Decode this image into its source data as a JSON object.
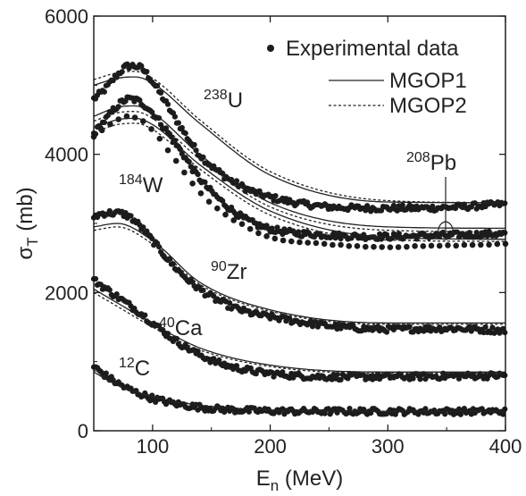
{
  "chart_data": {
    "type": "scatter",
    "xlabel": {
      "main": "E",
      "sub": "n",
      "unit": " (MeV)"
    },
    "ylabel": {
      "main": "σ",
      "sub": "T",
      "unit": " (mb)"
    },
    "xlim": [
      50,
      400
    ],
    "ylim": [
      0,
      6000
    ],
    "xticks": [
      100,
      200,
      300,
      400
    ],
    "yticks": [
      0,
      2000,
      4000,
      6000
    ],
    "legend": {
      "placement": "top-right",
      "entries": [
        {
          "label": "Experimental data",
          "style": "dots"
        },
        {
          "label": "MGOP1",
          "style": "solid"
        },
        {
          "label": "MGOP2",
          "style": "dashed"
        }
      ]
    },
    "nuclei": [
      {
        "mass": "238",
        "symbol": "U",
        "experimental": {
          "x": [
            50,
            60,
            70,
            80,
            90,
            100,
            120,
            140,
            160,
            180,
            200,
            250,
            300,
            350,
            400
          ],
          "y": [
            4800,
            4950,
            5150,
            5280,
            5250,
            5050,
            4500,
            4000,
            3700,
            3500,
            3380,
            3240,
            3220,
            3230,
            3280
          ]
        },
        "mgop1": {
          "x": [
            50,
            70,
            85,
            100,
            140,
            200,
            300,
            400
          ],
          "y": [
            5000,
            5100,
            5120,
            5030,
            4450,
            3700,
            3310,
            3300
          ]
        },
        "mgop2": {
          "x": [
            50,
            70,
            85,
            100,
            140,
            200,
            300,
            400
          ],
          "y": [
            5080,
            5180,
            5200,
            5100,
            4500,
            3750,
            3330,
            3300
          ]
        }
      },
      {
        "mass": "208",
        "symbol": "Pb",
        "experimental": {
          "x": [
            50,
            60,
            70,
            80,
            90,
            100,
            120,
            140,
            160,
            180,
            200,
            250,
            300,
            350,
            400
          ],
          "y": [
            4300,
            4500,
            4700,
            4800,
            4750,
            4600,
            4150,
            3650,
            3300,
            3050,
            2920,
            2830,
            2810,
            2830,
            2850
          ]
        },
        "mgop1": {
          "x": [
            50,
            70,
            85,
            100,
            140,
            200,
            300,
            400
          ],
          "y": [
            4550,
            4680,
            4700,
            4600,
            4000,
            3300,
            2950,
            2930
          ]
        },
        "mgop2": {
          "x": [
            50,
            70,
            85,
            100,
            140,
            200,
            300,
            400
          ],
          "y": [
            4480,
            4600,
            4620,
            4520,
            3930,
            3240,
            2900,
            2880
          ]
        }
      },
      {
        "mass": "184",
        "symbol": "W",
        "experimental": {
          "x": [
            50,
            60,
            70,
            80,
            90,
            100,
            120,
            140,
            160,
            180,
            200,
            250,
            300,
            350,
            400
          ],
          "y": [
            4250,
            4380,
            4500,
            4550,
            4500,
            4350,
            3900,
            3450,
            3150,
            2950,
            2800,
            2700,
            2660,
            2680,
            2700
          ]
        },
        "mgop1": {
          "x": [
            50,
            70,
            85,
            100,
            140,
            200,
            300,
            400
          ],
          "y": [
            4380,
            4500,
            4520,
            4430,
            3850,
            3180,
            2800,
            2770
          ]
        },
        "mgop2": {
          "x": [
            50,
            70,
            85,
            100,
            140,
            200,
            300,
            400
          ],
          "y": [
            4320,
            4430,
            4450,
            4360,
            3790,
            3120,
            2760,
            2740
          ]
        }
      },
      {
        "mass": "90",
        "symbol": "Zr",
        "experimental": {
          "x": [
            50,
            60,
            70,
            80,
            90,
            100,
            120,
            140,
            160,
            180,
            200,
            250,
            300,
            350,
            400
          ],
          "y": [
            3100,
            3150,
            3150,
            3100,
            2950,
            2750,
            2350,
            2050,
            1850,
            1720,
            1650,
            1520,
            1470,
            1480,
            1450
          ]
        },
        "mgop1": {
          "x": [
            50,
            70,
            100,
            140,
            200,
            300,
            400
          ],
          "y": [
            2950,
            3000,
            2750,
            2150,
            1750,
            1560,
            1560
          ]
        },
        "mgop2": {
          "x": [
            50,
            70,
            100,
            140,
            200,
            300,
            400
          ],
          "y": [
            2900,
            2950,
            2700,
            2120,
            1730,
            1540,
            1540
          ]
        }
      },
      {
        "mass": "40",
        "symbol": "Ca",
        "experimental": {
          "x": [
            50,
            60,
            70,
            80,
            90,
            100,
            120,
            140,
            160,
            180,
            200,
            250,
            300,
            350,
            400
          ],
          "y": [
            2180,
            2060,
            1940,
            1820,
            1700,
            1560,
            1300,
            1100,
            960,
            880,
            830,
            780,
            780,
            790,
            800
          ]
        },
        "mgop1": {
          "x": [
            50,
            70,
            100,
            140,
            200,
            300,
            400
          ],
          "y": [
            2050,
            1850,
            1550,
            1200,
            950,
            850,
            850
          ]
        },
        "mgop2": {
          "x": [
            50,
            70,
            100,
            140,
            200,
            300,
            400
          ],
          "y": [
            2000,
            1800,
            1500,
            1170,
            930,
            830,
            830
          ]
        }
      },
      {
        "mass": "12",
        "symbol": "C",
        "experimental": {
          "x": [
            50,
            60,
            70,
            80,
            90,
            100,
            120,
            140,
            160,
            180,
            200,
            250,
            300,
            350,
            400
          ],
          "y": [
            930,
            800,
            690,
            600,
            530,
            470,
            390,
            340,
            310,
            295,
            285,
            280,
            280,
            280,
            280
          ]
        },
        "mgop1": {
          "x": [
            50,
            70,
            100,
            140,
            200,
            300,
            400
          ],
          "y": [
            850,
            660,
            490,
            370,
            300,
            280,
            280
          ]
        },
        "mgop2": {
          "x": [
            50,
            70,
            100,
            140,
            200,
            300,
            400
          ],
          "y": [
            880,
            680,
            500,
            375,
            305,
            282,
            282
          ]
        }
      }
    ]
  }
}
